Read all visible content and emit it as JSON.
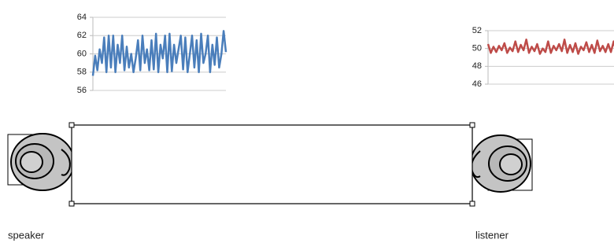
{
  "chart_data": [
    {
      "type": "line",
      "color": "#4a7ebb",
      "ylim": [
        56,
        64
      ],
      "yticks": [
        56,
        58,
        60,
        62,
        64
      ],
      "grid": true,
      "values": [
        57.6,
        59.8,
        58.2,
        60.5,
        59,
        61.8,
        58,
        62,
        58.5,
        62,
        58,
        61,
        59,
        62,
        58.2,
        60.8,
        58.5,
        60,
        58,
        59.5,
        61.5,
        58.2,
        62,
        59,
        60.5,
        58.2,
        61.5,
        58.3,
        62.2,
        58,
        61,
        59.5,
        62,
        58,
        62.2,
        58.1,
        61,
        59,
        60.5,
        62,
        58.3,
        61.8,
        58,
        60,
        62,
        58.5,
        61.5,
        58,
        62.2,
        59,
        60,
        62,
        58,
        61,
        58.8,
        61.8,
        58.5,
        60,
        62.5,
        60.2
      ]
    },
    {
      "type": "line",
      "color": "#be4b48",
      "ylim": [
        46,
        52
      ],
      "yticks": [
        46,
        48,
        50,
        52
      ],
      "grid": true,
      "values": [
        50.5,
        49.5,
        50.2,
        49.6,
        50.3,
        49.8,
        50.6,
        49.5,
        50.1,
        49.7,
        50.8,
        49.6,
        50.4,
        49.8,
        51,
        49.5,
        50.2,
        49.7,
        50.5,
        49.4,
        50,
        49.6,
        50.8,
        49.5,
        50.3,
        49.8,
        50.5,
        49.7,
        51,
        49.5,
        50.4,
        49.6,
        50.6,
        49.4,
        50.2,
        49.8,
        50.7,
        49.6,
        50.4,
        49.5,
        50.9,
        49.7,
        50.3,
        49.6,
        50.5,
        49.6,
        50.8,
        49.5,
        50.2,
        49.7
      ]
    }
  ],
  "labels": {
    "speaker": "speaker",
    "listener": "listener"
  }
}
